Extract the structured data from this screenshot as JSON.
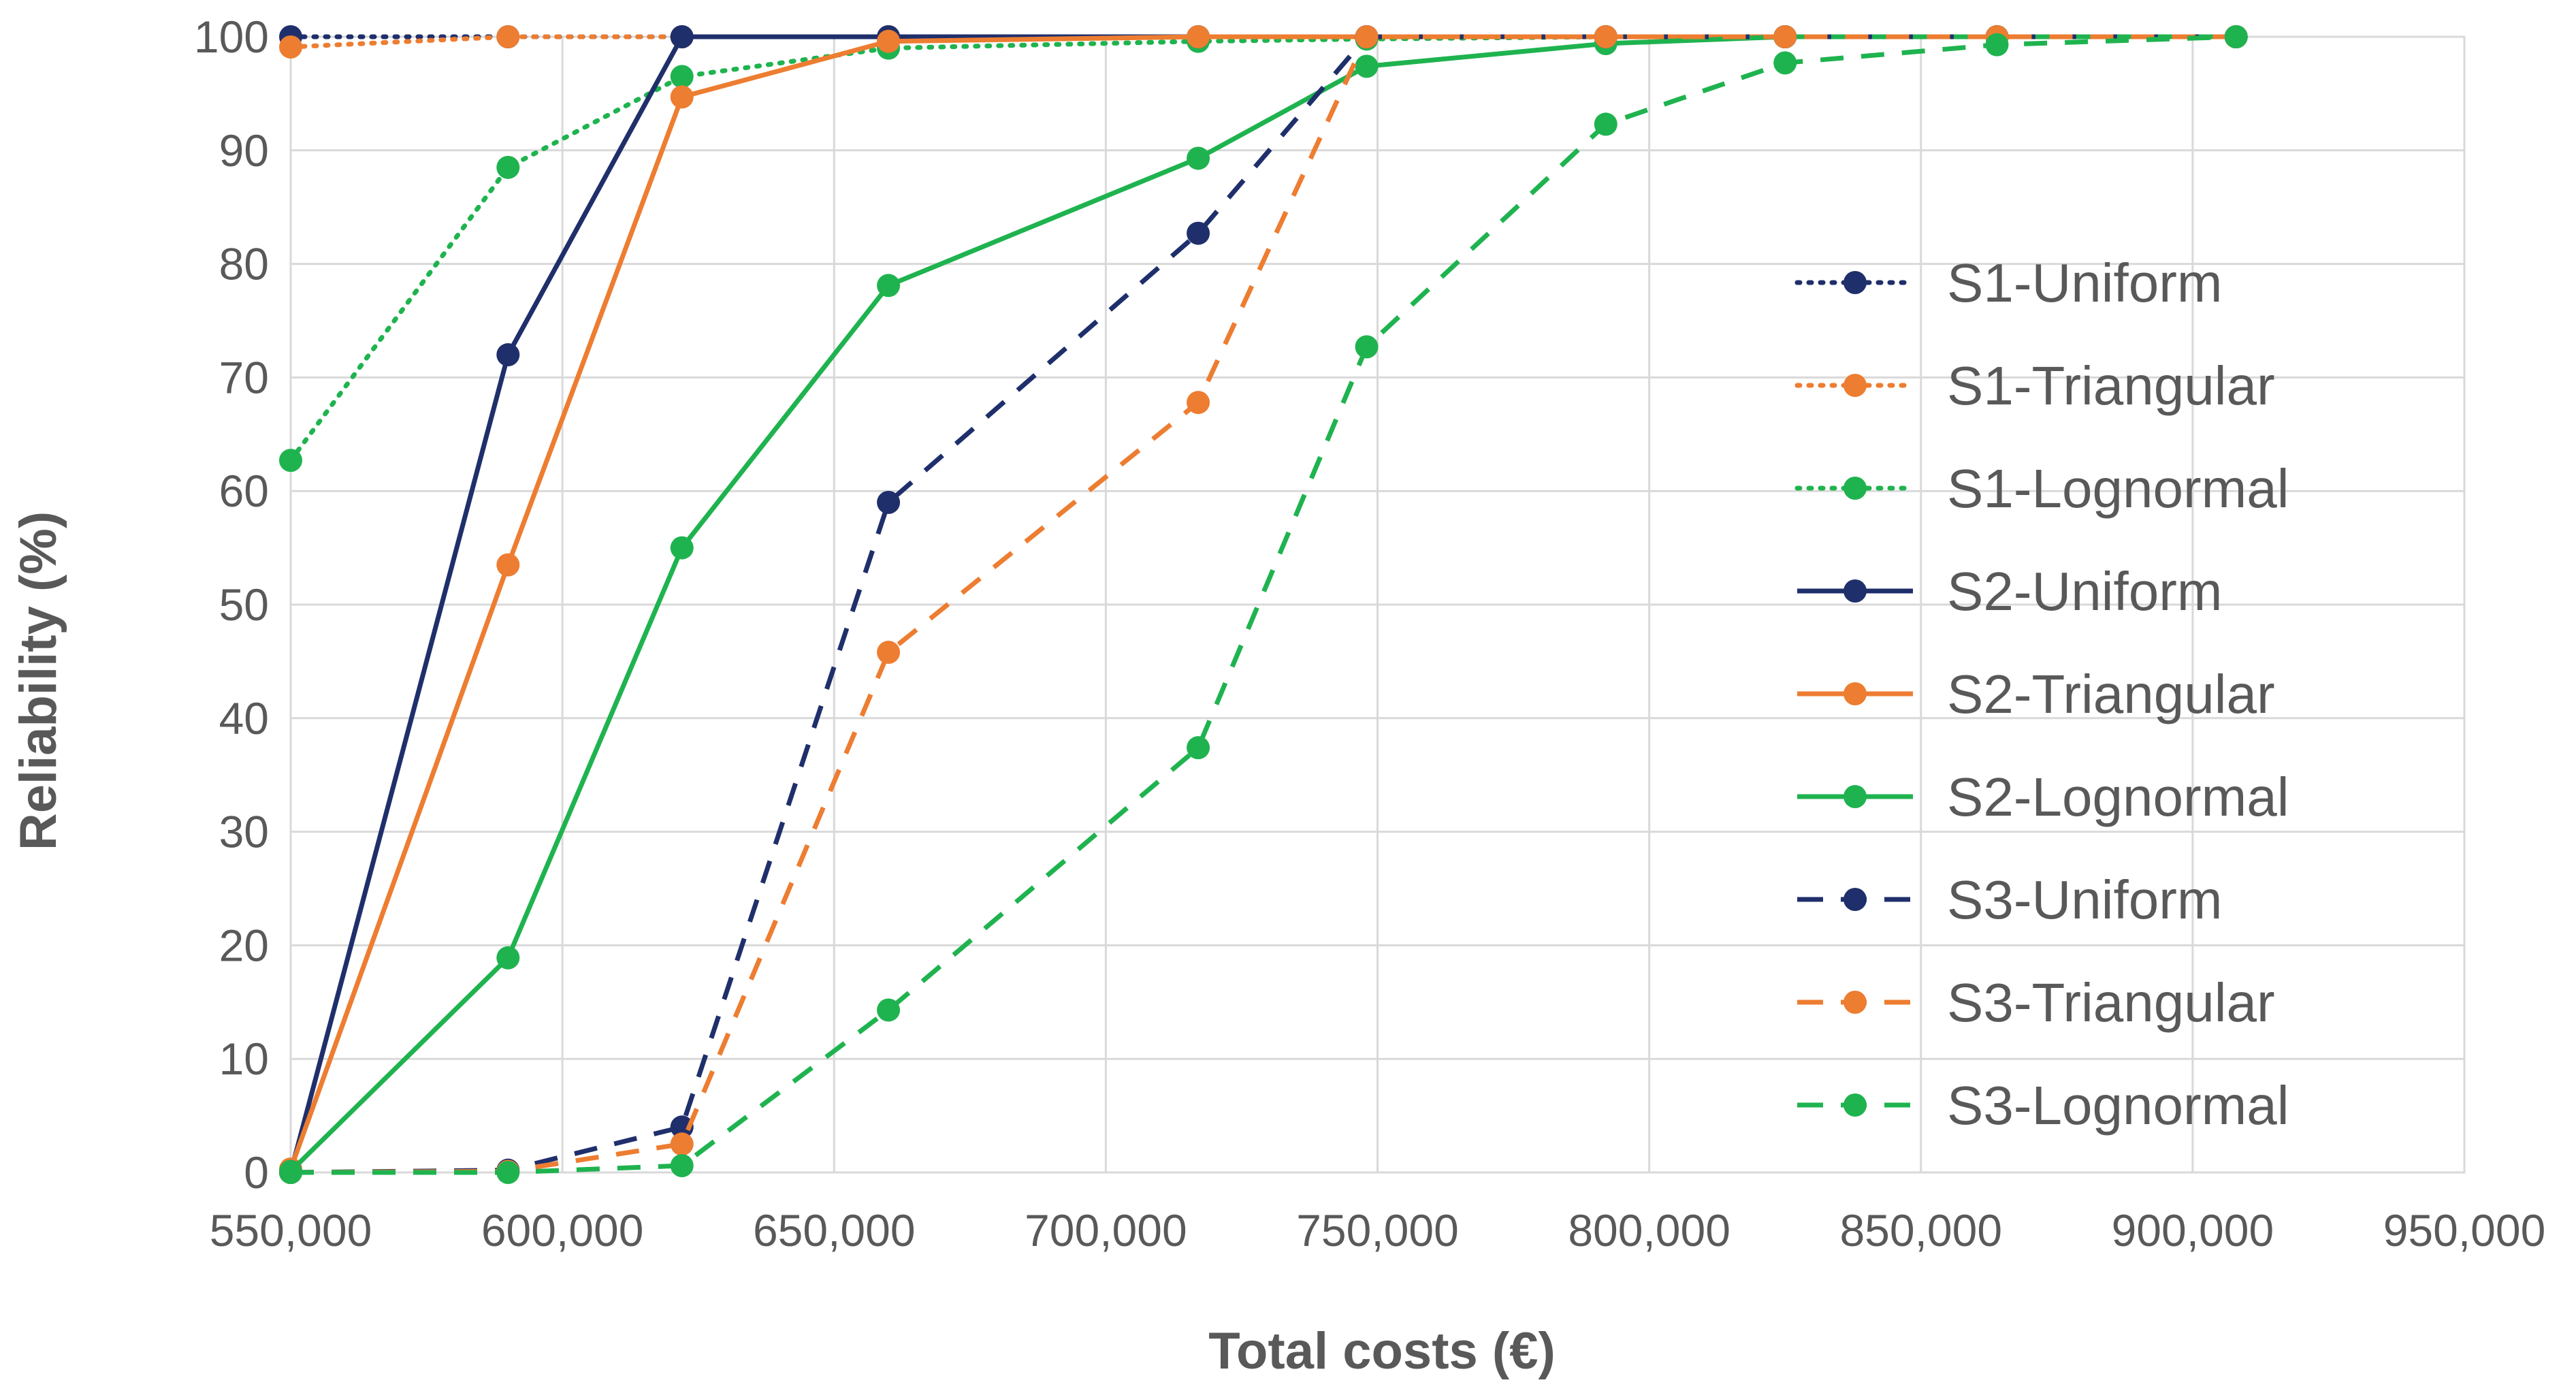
{
  "chart_data": {
    "type": "line",
    "title": "",
    "xlabel": "Total costs (€)",
    "ylabel": "Reliability (%)",
    "xlim": [
      550000,
      950000
    ],
    "ylim": [
      0,
      100
    ],
    "x_ticks": [
      550000,
      600000,
      650000,
      700000,
      750000,
      800000,
      850000,
      900000,
      950000
    ],
    "x_tick_labels": [
      "550,000",
      "600,000",
      "650,000",
      "700,000",
      "750,000",
      "800,000",
      "850,000",
      "900,000",
      "950,000"
    ],
    "y_ticks": [
      0,
      10,
      20,
      30,
      40,
      50,
      60,
      70,
      80,
      90,
      100
    ],
    "y_tick_labels": [
      "0",
      "10",
      "20",
      "30",
      "40",
      "50",
      "60",
      "70",
      "80",
      "90",
      "100"
    ],
    "grid": true,
    "legend_position": "right",
    "series": [
      {
        "name": "S1-Uniform",
        "color": "#1f2f6b",
        "style": "dotted",
        "x": [
          550000,
          590000,
          622000,
          660000,
          717000,
          748000,
          792000,
          825000,
          864000,
          908000
        ],
        "y": [
          100,
          100,
          100,
          100,
          100,
          100,
          100,
          100,
          100,
          100
        ]
      },
      {
        "name": "S1-Triangular",
        "color": "#ed7d31",
        "style": "dotted",
        "x": [
          550000,
          590000,
          622000,
          660000,
          717000,
          748000,
          792000,
          825000,
          864000,
          908000
        ],
        "y": [
          99.1,
          100,
          100,
          100,
          100,
          100,
          100,
          100,
          100,
          100
        ]
      },
      {
        "name": "S1-Lognormal",
        "color": "#1fb34f",
        "style": "dotted",
        "x": [
          550000,
          590000,
          622000,
          660000,
          717000,
          748000,
          792000,
          825000,
          864000,
          908000
        ],
        "y": [
          62.7,
          88.5,
          96.5,
          99,
          99.6,
          99.8,
          100,
          100,
          100,
          100
        ]
      },
      {
        "name": "S2-Uniform",
        "color": "#1f2f6b",
        "style": "solid",
        "x": [
          550000,
          590000,
          622000,
          660000,
          717000,
          748000,
          792000,
          825000,
          864000,
          908000
        ],
        "y": [
          0,
          72,
          100,
          100,
          100,
          100,
          100,
          100,
          100,
          100
        ]
      },
      {
        "name": "S2-Triangular",
        "color": "#ed7d31",
        "style": "solid",
        "x": [
          550000,
          590000,
          622000,
          660000,
          717000,
          748000,
          792000,
          825000,
          864000,
          908000
        ],
        "y": [
          0.3,
          53.5,
          94.7,
          99.6,
          100,
          100,
          100,
          100,
          100,
          100
        ]
      },
      {
        "name": "S2-Lognormal",
        "color": "#1fb34f",
        "style": "solid",
        "x": [
          550000,
          590000,
          622000,
          660000,
          717000,
          748000,
          792000,
          825000,
          864000,
          908000
        ],
        "y": [
          0.1,
          18.9,
          55,
          78.1,
          89.3,
          97.4,
          99.4,
          100,
          100,
          100
        ]
      },
      {
        "name": "S3-Uniform",
        "color": "#1f2f6b",
        "style": "dashed",
        "x": [
          550000,
          590000,
          622000,
          660000,
          717000,
          748000,
          792000,
          825000,
          864000,
          908000
        ],
        "y": [
          0,
          0.2,
          4,
          59,
          82.7,
          100,
          100,
          100,
          100,
          100
        ]
      },
      {
        "name": "S3-Triangular",
        "color": "#ed7d31",
        "style": "dashed",
        "x": [
          550000,
          590000,
          622000,
          660000,
          717000,
          748000,
          792000,
          825000,
          864000,
          908000
        ],
        "y": [
          0,
          0.1,
          2.5,
          45.8,
          67.8,
          100,
          100,
          100,
          100,
          100
        ]
      },
      {
        "name": "S3-Lognormal",
        "color": "#1fb34f",
        "style": "dashed",
        "x": [
          550000,
          590000,
          622000,
          660000,
          717000,
          748000,
          792000,
          825000,
          864000,
          908000
        ],
        "y": [
          0,
          0,
          0.6,
          14.3,
          37.4,
          72.7,
          92.3,
          97.7,
          99.3,
          100
        ]
      }
    ]
  }
}
